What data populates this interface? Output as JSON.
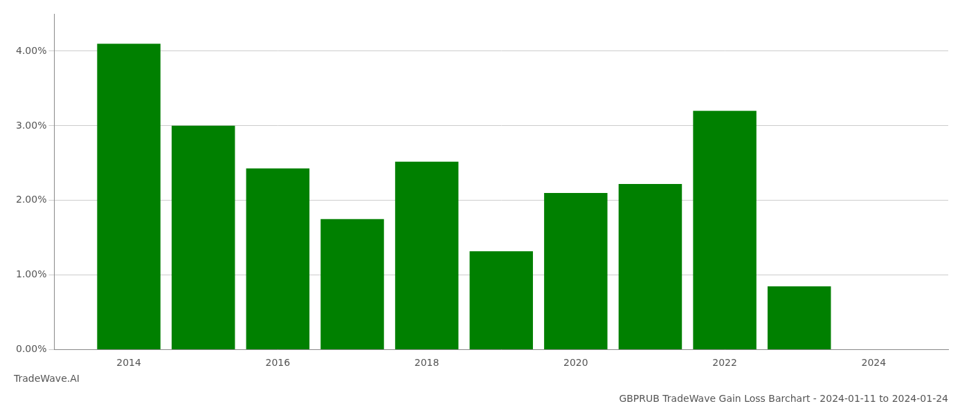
{
  "chart_data": {
    "type": "bar",
    "title": "GBPRUB TradeWave Gain Loss Barchart - 2024-01-11 to 2024-01-24",
    "annotations": [
      "TradeWave.AI"
    ],
    "x": [
      2014,
      2015,
      2016,
      2017,
      2018,
      2019,
      2020,
      2021,
      2022,
      2023
    ],
    "values": [
      0.041,
      0.03,
      0.0243,
      0.0175,
      0.0252,
      0.0132,
      0.021,
      0.0222,
      0.032,
      0.0085
    ],
    "color": "#008000",
    "xlim": [
      2013,
      2025
    ],
    "xticks": [
      2014,
      2016,
      2018,
      2020,
      2022,
      2024
    ],
    "ylim": [
      0,
      0.045
    ],
    "yticks": [
      {
        "value": 0.0,
        "label": "0.00%"
      },
      {
        "value": 0.01,
        "label": "1.00%"
      },
      {
        "value": 0.02,
        "label": "2.00%"
      },
      {
        "value": 0.03,
        "label": "3.00%"
      },
      {
        "value": 0.04,
        "label": "4.00%"
      }
    ],
    "grid": true
  }
}
